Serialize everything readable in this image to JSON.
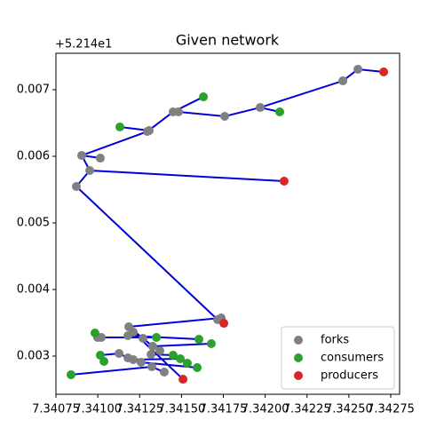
{
  "chart_data": {
    "type": "network",
    "title": "Given network",
    "y_offset_label": "+5.214e1",
    "xlim": [
      7.34075,
      7.342803
    ],
    "ylim": [
      0.002427,
      0.007547
    ],
    "xticks": [
      7.34075,
      {
        "value": 7.341,
        "label": "7.34100"
      },
      7.34125,
      {
        "value": 7.3415,
        "label": "7.34150"
      },
      7.34175,
      {
        "value": 7.342,
        "label": "7.34200"
      },
      7.34225,
      {
        "value": 7.3425,
        "label": "7.34250"
      },
      7.34275
    ],
    "yticks": [
      0.003,
      0.004,
      0.005,
      0.006,
      0.007
    ],
    "legend": "lower right",
    "edges": {
      "color": "#0000dd",
      "x": [
        7.342708,
        7.342554,
        7.342464,
        7.34197,
        7.342087,
        null,
        7.34197,
        7.341758,
        7.341482,
        7.34145,
        7.341631,
        null,
        7.34145,
        7.341296,
        7.340904,
        7.341015,
        null,
        7.341307,
        7.341132,
        null,
        7.340904,
        7.340952,
        7.342113,
        null,
        7.340952,
        7.340872,
        7.341716,
        7.341737,
        7.341753,
        null,
        7.341737,
        7.341185,
        null,
        7.340999,
        7.34135,
        null,
        7.34118,
        7.341604,
        null,
        7.341185,
        7.34127,
        7.341328,
        7.341678,
        null,
        7.341015,
        7.341127,
        7.34118,
        7.341259,
        7.341594,
        null,
        7.341212,
        7.341509,
        null,
        7.341318,
        7.34145,
        7.341535,
        null,
        7.34084,
        7.341323,
        7.341397,
        null,
        7.341212,
        7.341493
      ],
      "y": [
        0.007267,
        0.007307,
        0.007133,
        0.006733,
        0.006667,
        null,
        0.006733,
        0.0066,
        0.006667,
        0.006667,
        0.006893,
        null,
        0.006667,
        0.006373,
        0.006013,
        0.005973,
        null,
        0.006387,
        0.00644,
        null,
        0.006013,
        0.005787,
        0.005627,
        null,
        0.005787,
        0.005547,
        0.003547,
        0.003573,
        0.003493,
        null,
        0.003573,
        0.00344,
        null,
        0.00328,
        0.00328,
        null,
        0.003307,
        0.003253,
        null,
        0.00344,
        0.003267,
        0.003147,
        0.003187,
        null,
        0.003013,
        0.00304,
        0.002973,
        0.002907,
        0.002827,
        null,
        0.00336,
        0.002653,
        null,
        0.003027,
        0.003013,
        0.002893,
        null,
        0.00272,
        0.00284,
        0.00276,
        null,
        0.002947,
        0.00296
      ]
    },
    "series": [
      {
        "name": "forks",
        "color": "#808080",
        "x": [
          7.342554,
          7.342464,
          7.34197,
          7.341758,
          7.341482,
          7.34145,
          7.341307,
          7.341296,
          7.341015,
          7.340904,
          7.340952,
          7.340872,
          7.341737,
          7.341716,
          7.341185,
          7.341212,
          7.34118,
          7.34127,
          7.341021,
          7.340999,
          7.341328,
          7.341371,
          7.341127,
          7.34118,
          7.341212,
          7.341259,
          7.341318,
          7.341323,
          7.341397
        ],
        "y": [
          0.007307,
          0.007133,
          0.006733,
          0.0066,
          0.006667,
          0.006667,
          0.006387,
          0.006373,
          0.005973,
          0.006013,
          0.005787,
          0.005547,
          0.003573,
          0.003547,
          0.00344,
          0.00336,
          0.003307,
          0.003267,
          0.00328,
          0.00328,
          0.003147,
          0.00308,
          0.00304,
          0.002973,
          0.002947,
          0.002907,
          0.003027,
          0.00284,
          0.00276
        ]
      },
      {
        "name": "consumers",
        "color": "#2ca02c",
        "x": [
          7.341631,
          7.342087,
          7.341132,
          7.340983,
          7.34135,
          7.341604,
          7.341678,
          7.341015,
          7.341037,
          7.34145,
          7.341493,
          7.341535,
          7.341594,
          7.34084
        ],
        "y": [
          0.006893,
          0.006667,
          0.00644,
          0.003347,
          0.00328,
          0.003253,
          0.003187,
          0.003013,
          0.00292,
          0.003013,
          0.00296,
          0.002893,
          0.002827,
          0.00272
        ]
      },
      {
        "name": "producers",
        "color": "#d62728",
        "x": [
          7.342708,
          7.342113,
          7.341753,
          7.341509
        ],
        "y": [
          0.007267,
          0.005627,
          0.003493,
          0.002653
        ]
      }
    ]
  }
}
